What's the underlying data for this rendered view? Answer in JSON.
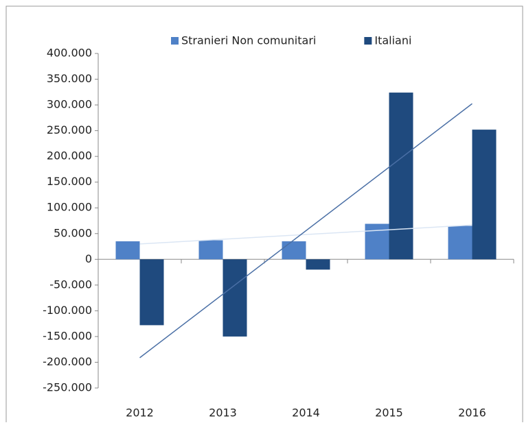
{
  "chart_data": {
    "type": "bar",
    "categories": [
      "2012",
      "2013",
      "2014",
      "2015",
      "2016"
    ],
    "series": [
      {
        "name": "Stranieri Non comunitari",
        "color": "#4f81c7",
        "trendline_color": "#dbe6f4",
        "trendline": true,
        "values": [
          35000,
          37000,
          35000,
          69000,
          65000
        ]
      },
      {
        "name": "Italiani",
        "color": "#1f4a7e",
        "trendline_color": "#4a6fa5",
        "trendline": true,
        "values": [
          -128000,
          -150000,
          -20000,
          324000,
          252000
        ]
      }
    ],
    "ylim": [
      -250000,
      400000
    ],
    "yticks": [
      {
        "value": 400000,
        "label": "400.000"
      },
      {
        "value": 350000,
        "label": "350.000"
      },
      {
        "value": 300000,
        "label": "300.000"
      },
      {
        "value": 250000,
        "label": "250.000"
      },
      {
        "value": 200000,
        "label": "200.000"
      },
      {
        "value": 150000,
        "label": "150.000"
      },
      {
        "value": 100000,
        "label": "100.000"
      },
      {
        "value": 50000,
        "label": "50.000"
      },
      0,
      {
        "value": -50000,
        "label": "-50.000"
      },
      {
        "value": -100000,
        "label": "-100.000"
      },
      {
        "value": -150000,
        "label": "-150.000"
      },
      {
        "value": -200000,
        "label": "-200.000"
      },
      {
        "value": -250000,
        "label": "-250.000"
      }
    ],
    "grid": false,
    "legend": "top"
  }
}
